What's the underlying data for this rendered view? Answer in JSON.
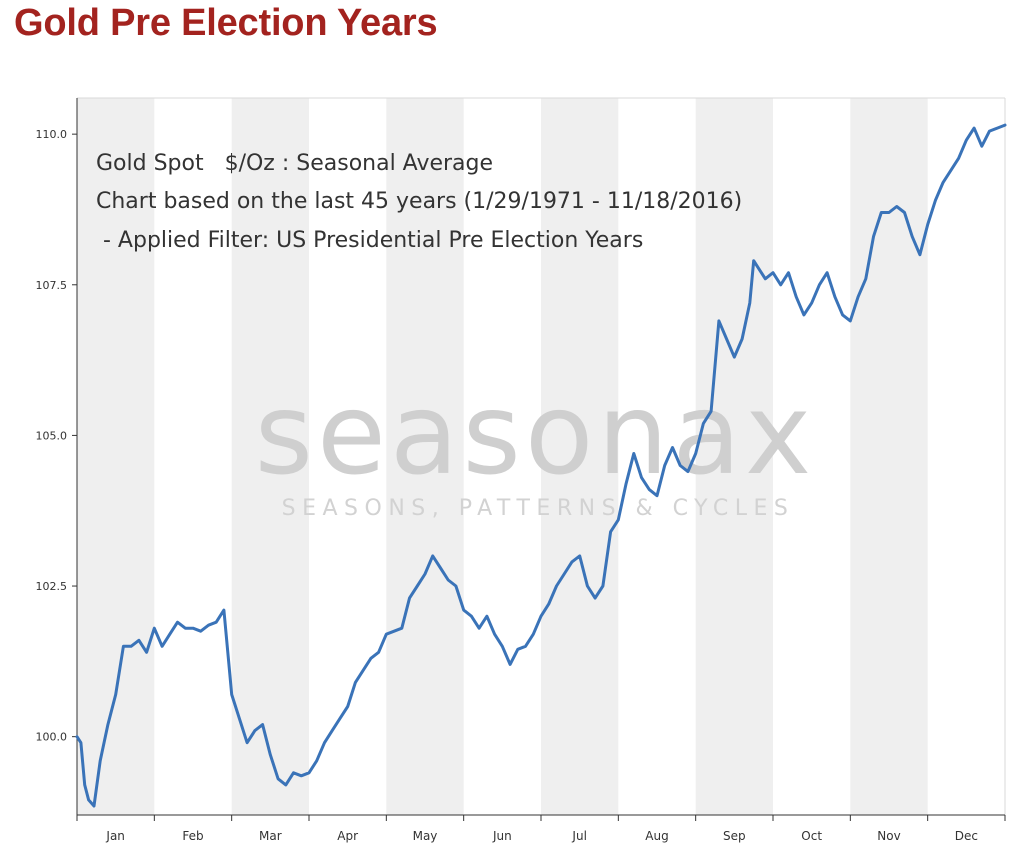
{
  "page": {
    "title": "Gold Pre Election Years",
    "title_color": "#a3231f"
  },
  "annotation": {
    "line1": "Gold Spot   $/Oz : Seasonal Average",
    "line2": "Chart based on the last 45 years (1/29/1971 - 11/18/2016)",
    "line3": " - Applied Filter: US Presidential Pre Election Years"
  },
  "watermark": {
    "brand": "seasonax",
    "tagline": "SEASONS, PATTERNS & CYCLES"
  },
  "chart_data": {
    "type": "line",
    "title": "Gold Spot $/Oz : Seasonal Average",
    "xlabel": "",
    "ylabel": "",
    "months": [
      "Jan",
      "Feb",
      "Mar",
      "Apr",
      "May",
      "Jun",
      "Jul",
      "Aug",
      "Sep",
      "Oct",
      "Nov",
      "Dec"
    ],
    "ylim": [
      98.7,
      110.6
    ],
    "yticks": [
      100.0,
      102.5,
      105.0,
      107.5,
      110.0
    ],
    "ytick_labels": [
      "100.0",
      "102.5",
      "105.0",
      "107.5",
      "110.0"
    ],
    "grid": "alternating month bands",
    "line_color": "#3a73b8",
    "series": [
      {
        "x": [
          0.0,
          0.05,
          0.1,
          0.15,
          0.22,
          0.3,
          0.4,
          0.5,
          0.6,
          0.7,
          0.8,
          0.9,
          1.0,
          1.1,
          1.2,
          1.3,
          1.4,
          1.5,
          1.6,
          1.7,
          1.8,
          1.9,
          2.0,
          2.1,
          2.2,
          2.3,
          2.4,
          2.5,
          2.6,
          2.7,
          2.8,
          2.9,
          3.0,
          3.1,
          3.2,
          3.3,
          3.4,
          3.5,
          3.6,
          3.7,
          3.8,
          3.9,
          4.0,
          4.1,
          4.2,
          4.3,
          4.4,
          4.5,
          4.6,
          4.7,
          4.8,
          4.9,
          5.0,
          5.1,
          5.2,
          5.3,
          5.4,
          5.5,
          5.6,
          5.7,
          5.8,
          5.9,
          6.0,
          6.1,
          6.2,
          6.3,
          6.4,
          6.5,
          6.6,
          6.7,
          6.8,
          6.9,
          7.0,
          7.1,
          7.2,
          7.3,
          7.4,
          7.5,
          7.6,
          7.7,
          7.8,
          7.9,
          8.0,
          8.1,
          8.2,
          8.3,
          8.4,
          8.5,
          8.6,
          8.7,
          8.75,
          8.8,
          8.9,
          9.0,
          9.1,
          9.2,
          9.3,
          9.4,
          9.5,
          9.6,
          9.7,
          9.8,
          9.9,
          10.0,
          10.1,
          10.2,
          10.3,
          10.4,
          10.5,
          10.6,
          10.7,
          10.8,
          10.9,
          11.0,
          11.1,
          11.2,
          11.3,
          11.4,
          11.5,
          11.6,
          11.7,
          11.8,
          11.9,
          12.0
        ],
        "values": [
          100.0,
          99.9,
          99.2,
          98.95,
          98.85,
          99.6,
          100.2,
          100.7,
          101.5,
          101.5,
          101.6,
          101.4,
          101.8,
          101.5,
          101.7,
          101.9,
          101.8,
          101.8,
          101.75,
          101.85,
          101.9,
          102.1,
          100.7,
          100.3,
          99.9,
          100.1,
          100.2,
          99.7,
          99.3,
          99.2,
          99.4,
          99.35,
          99.4,
          99.6,
          99.9,
          100.1,
          100.3,
          100.5,
          100.9,
          101.1,
          101.3,
          101.4,
          101.7,
          101.75,
          101.8,
          102.3,
          102.5,
          102.7,
          103.0,
          102.8,
          102.6,
          102.5,
          102.1,
          102.0,
          101.8,
          102.0,
          101.7,
          101.5,
          101.2,
          101.45,
          101.5,
          101.7,
          102.0,
          102.2,
          102.5,
          102.7,
          102.9,
          103.0,
          102.5,
          102.3,
          102.5,
          103.4,
          103.6,
          104.2,
          104.7,
          104.3,
          104.1,
          104.0,
          104.5,
          104.8,
          104.5,
          104.4,
          104.7,
          105.2,
          105.4,
          106.9,
          106.6,
          106.3,
          106.6,
          107.2,
          107.9,
          107.8,
          107.6,
          107.7,
          107.5,
          107.7,
          107.3,
          107.0,
          107.2,
          107.5,
          107.7,
          107.3,
          107.0,
          106.9,
          107.3,
          107.6,
          108.3,
          108.7,
          108.7,
          108.8,
          108.7,
          108.3,
          108.0,
          108.5,
          108.9,
          109.2,
          109.4,
          109.6,
          109.9,
          110.1,
          109.8,
          110.05,
          110.1,
          110.15
        ]
      }
    ]
  }
}
